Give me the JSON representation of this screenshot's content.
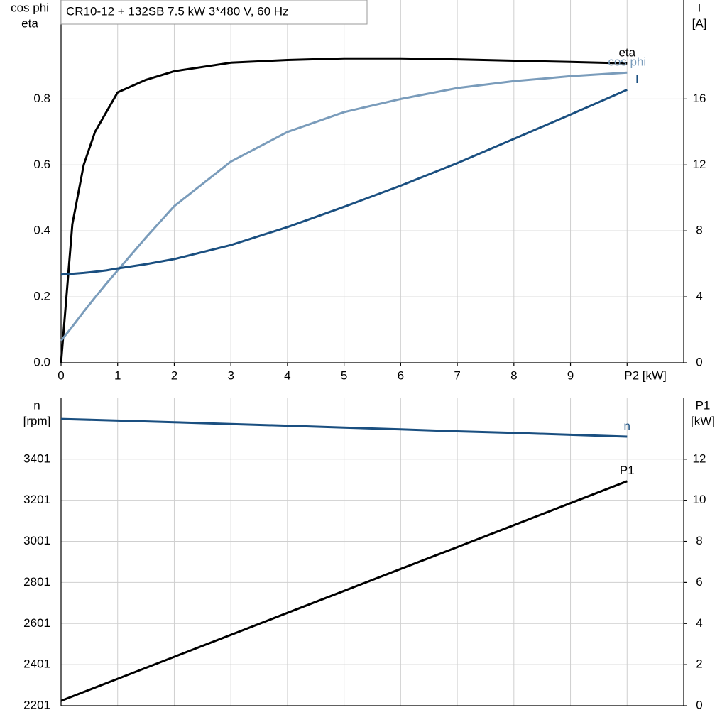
{
  "chart_data": [
    {
      "type": "line",
      "title": "CR10-12 + 132SB   7.5 kW   3*480 V, 60 Hz",
      "ylabel": [
        "cos phi",
        "eta"
      ],
      "y2label": [
        "I",
        "[A]"
      ],
      "xlim": [
        0,
        11
      ],
      "xticks": [
        0,
        1,
        2,
        3,
        4,
        5,
        6,
        7,
        8,
        9,
        {
          "value": 10,
          "label": "P2 [kW]"
        }
      ],
      "ylim": [
        0,
        1.1
      ],
      "yticks": [
        {
          "value": 0,
          "label": "0.0"
        },
        0.2,
        0.4,
        0.6,
        0.8
      ],
      "y2lim": [
        0,
        22
      ],
      "y2ticks": [
        0,
        4,
        8,
        12,
        16
      ],
      "grid": true,
      "x": [
        0,
        0.2,
        0.4,
        0.6,
        0.8,
        1,
        1.5,
        2,
        3,
        4,
        5,
        6,
        7,
        8,
        9,
        10
      ],
      "series": [
        {
          "name": "eta",
          "color": "#000000",
          "axis": "y",
          "values": [
            0,
            0.42,
            0.6,
            0.7,
            0.76,
            0.82,
            0.858,
            0.884,
            0.91,
            0.918,
            0.923,
            0.923,
            0.92,
            0.916,
            0.912,
            0.908
          ]
        },
        {
          "name": "cos phi",
          "color": "#7a9cbb",
          "axis": "y",
          "values": [
            0.067,
            0.11,
            0.155,
            0.198,
            0.24,
            0.28,
            0.38,
            0.475,
            0.61,
            0.7,
            0.76,
            0.8,
            0.833,
            0.854,
            0.869,
            0.88
          ]
        },
        {
          "name": "I",
          "color": "#1a4f80",
          "axis": "y2",
          "values": [
            5.35,
            5.4,
            5.45,
            5.52,
            5.6,
            5.72,
            5.98,
            6.29,
            7.14,
            8.23,
            9.46,
            10.74,
            12.11,
            13.58,
            15.05,
            16.56
          ]
        }
      ]
    },
    {
      "type": "line",
      "ylabel": [
        "n",
        "[rpm]"
      ],
      "y2label": [
        "P1",
        "[kW]"
      ],
      "xlim": [
        0,
        11
      ],
      "ylim": [
        2201,
        3701
      ],
      "yticks": [
        2201,
        2401,
        2601,
        2801,
        3001,
        3201,
        3401
      ],
      "y2lim": [
        0,
        15
      ],
      "y2ticks": [
        0,
        2,
        4,
        6,
        8,
        10,
        12
      ],
      "grid": true,
      "x": [
        0,
        1,
        2,
        3,
        4,
        5,
        6,
        7,
        8,
        9,
        10
      ],
      "series": [
        {
          "name": "n",
          "color": "#1a4f80",
          "axis": "y",
          "values": [
            3597,
            3589,
            3581,
            3572,
            3564,
            3555,
            3546,
            3537,
            3529,
            3520,
            3511
          ]
        },
        {
          "name": "P1",
          "color": "#000000",
          "axis": "y2",
          "values": [
            0.24,
            1.31,
            2.38,
            3.45,
            4.52,
            5.59,
            6.66,
            7.72,
            8.79,
            9.86,
            10.93
          ]
        }
      ]
    }
  ]
}
